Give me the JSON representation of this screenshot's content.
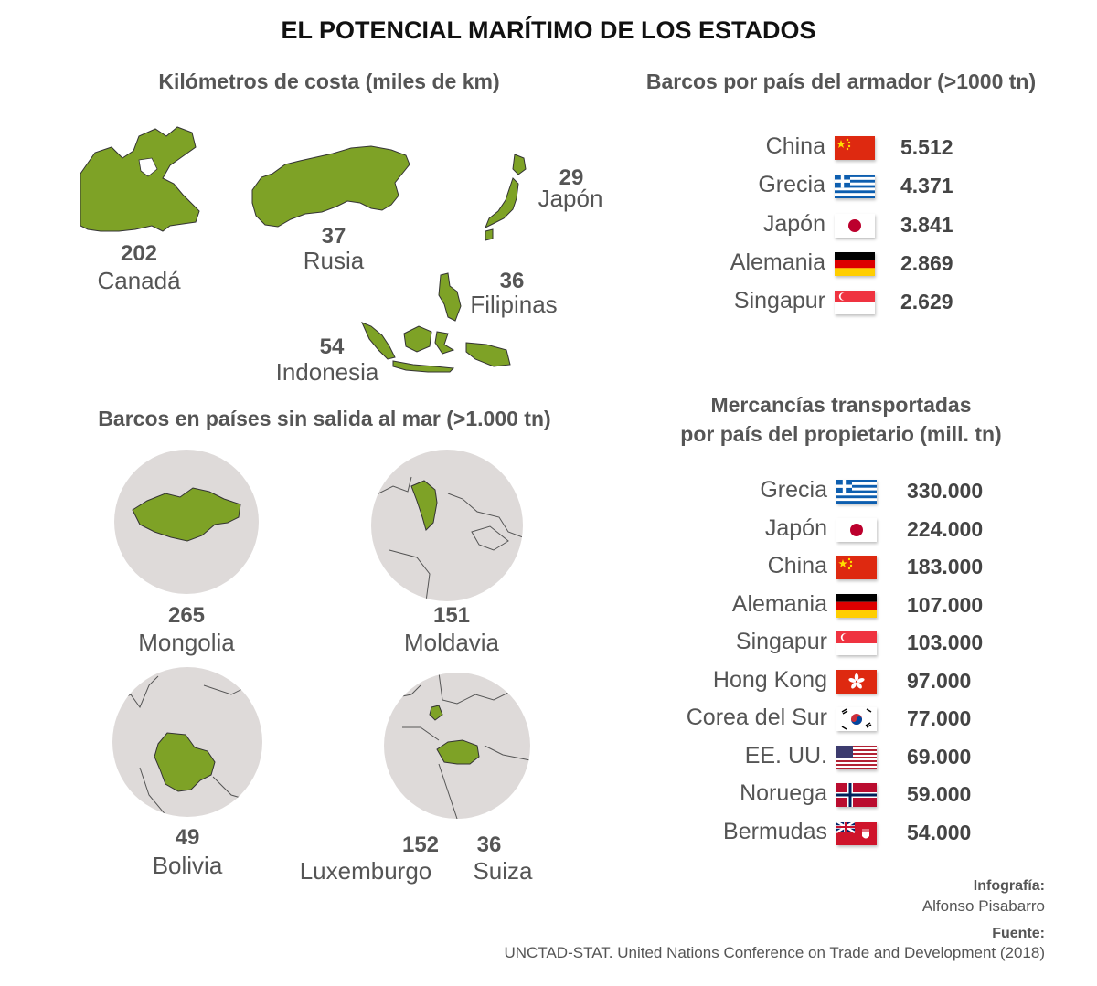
{
  "title": "EL POTENCIAL MARÍTIMO DE LOS ESTADOS",
  "coast": {
    "heading": "Kilómetros de costa (miles de km)",
    "items": [
      {
        "value": "202",
        "name": "Canadá"
      },
      {
        "value": "37",
        "name": "Rusia"
      },
      {
        "value": "29",
        "name": "Japón"
      },
      {
        "value": "36",
        "name": "Filipinas"
      },
      {
        "value": "54",
        "name": "Indonesia"
      }
    ]
  },
  "landlocked": {
    "heading": "Barcos en países sin salida al mar (>1.000 tn)",
    "items": [
      {
        "value": "265",
        "name": "Mongolia"
      },
      {
        "value": "151",
        "name": "Moldavia"
      },
      {
        "value": "49",
        "name": "Bolivia"
      },
      {
        "value": "152",
        "name": "Luxemburgo"
      },
      {
        "value": "36",
        "name": "Suiza"
      }
    ]
  },
  "ships": {
    "heading": "Barcos por país del armador (>1000 tn)",
    "rows": [
      {
        "country": "China",
        "flag": "china",
        "value": "5.512"
      },
      {
        "country": "Grecia",
        "flag": "greece",
        "value": "4.371"
      },
      {
        "country": "Japón",
        "flag": "japan",
        "value": "3.841"
      },
      {
        "country": "Alemania",
        "flag": "germany",
        "value": "2.869"
      },
      {
        "country": "Singapur",
        "flag": "singapore",
        "value": "2.629"
      }
    ]
  },
  "cargo": {
    "heading_line1": "Mercancías transportadas",
    "heading_line2": "por país del propietario (mill. tn)",
    "rows": [
      {
        "country": "Grecia",
        "flag": "greece",
        "value": "330.000"
      },
      {
        "country": "Japón",
        "flag": "japan",
        "value": "224.000"
      },
      {
        "country": "China",
        "flag": "china",
        "value": "183.000"
      },
      {
        "country": "Alemania",
        "flag": "germany",
        "value": "107.000"
      },
      {
        "country": "Singapur",
        "flag": "singapore",
        "value": "103.000"
      },
      {
        "country": "Hong Kong",
        "flag": "hongkong",
        "value": "97.000"
      },
      {
        "country": "Corea del Sur",
        "flag": "korea",
        "value": "77.000"
      },
      {
        "country": "EE. UU.",
        "flag": "usa",
        "value": "69.000"
      },
      {
        "country": "Noruega",
        "flag": "norway",
        "value": "59.000"
      },
      {
        "country": "Bermudas",
        "flag": "bermuda",
        "value": "54.000"
      }
    ]
  },
  "credits": {
    "infografia_label": "Infografía:",
    "infografia_name": "Alfonso Pisabarro",
    "fuente_label": "Fuente:",
    "fuente_text": "UNCTAD-STAT. United Nations Conference on Trade and Development (2018)"
  },
  "colors": {
    "land_green": "#7ea226",
    "circle_grey": "#dedad9",
    "text": "#555555"
  }
}
